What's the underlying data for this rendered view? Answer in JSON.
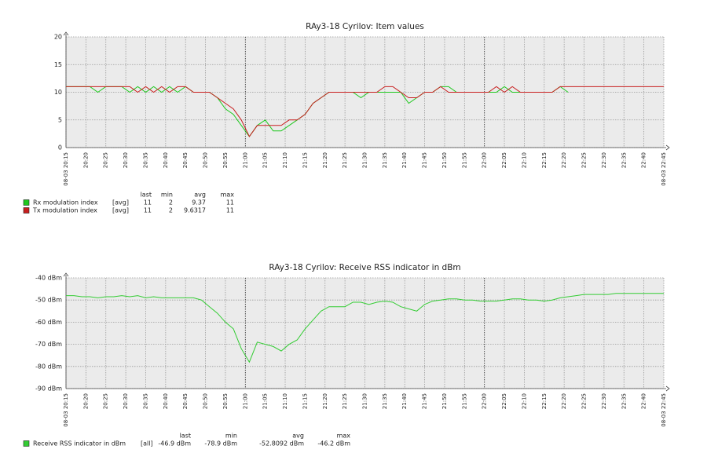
{
  "chart_data": [
    {
      "type": "line",
      "title": "RAy3-18 Cyrilov: Item values",
      "x": [
        "08-03 20:15",
        "08-03 20:17",
        "08-03 20:19",
        "08-03 20:21",
        "08-03 20:23",
        "08-03 20:25",
        "08-03 20:27",
        "08-03 20:29",
        "08-03 20:31",
        "08-03 20:33",
        "08-03 20:35",
        "08-03 20:37",
        "08-03 20:39",
        "08-03 20:41",
        "08-03 20:43",
        "08-03 20:45",
        "08-03 20:47",
        "08-03 20:49",
        "08-03 20:51",
        "08-03 20:53",
        "08-03 20:55",
        "08-03 20:57",
        "08-03 20:59",
        "08-03 21:01",
        "08-03 21:03",
        "08-03 21:05",
        "08-03 21:07",
        "08-03 21:09",
        "08-03 21:11",
        "08-03 21:13",
        "08-03 21:15",
        "08-03 21:17",
        "08-03 21:19",
        "08-03 21:21",
        "08-03 21:23",
        "08-03 21:25",
        "08-03 21:27",
        "08-03 21:29",
        "08-03 21:31",
        "08-03 21:33",
        "08-03 21:35",
        "08-03 21:37",
        "08-03 21:39",
        "08-03 21:41",
        "08-03 21:43",
        "08-03 21:45",
        "08-03 21:47",
        "08-03 21:49",
        "08-03 21:51",
        "08-03 21:53",
        "08-03 21:55",
        "08-03 21:57",
        "08-03 21:59",
        "08-03 22:01",
        "08-03 22:03",
        "08-03 22:05",
        "08-03 22:07",
        "08-03 22:09",
        "08-03 22:11",
        "08-03 22:13",
        "08-03 22:15",
        "08-03 22:17",
        "08-03 22:19",
        "08-03 22:21",
        "08-03 22:23",
        "08-03 22:25",
        "08-03 22:27",
        "08-03 22:29",
        "08-03 22:31",
        "08-03 22:33",
        "08-03 22:35",
        "08-03 22:37",
        "08-03 22:39",
        "08-03 22:41",
        "08-03 22:43",
        "08-03 22:45"
      ],
      "xlim": [
        "08-03 20:15",
        "08-03 22:45"
      ],
      "xticks": [
        "08-03 20:15",
        {
          "value": "08-03 20:20",
          "label": "20:20"
        },
        {
          "value": "08-03 20:25",
          "label": "20:25"
        },
        {
          "value": "08-03 20:30",
          "label": "20:30"
        },
        {
          "value": "08-03 20:35",
          "label": "20:35"
        },
        {
          "value": "08-03 20:40",
          "label": "20:40"
        },
        {
          "value": "08-03 20:45",
          "label": "20:45"
        },
        {
          "value": "08-03 20:50",
          "label": "20:50"
        },
        {
          "value": "08-03 20:55",
          "label": "20:55"
        },
        {
          "value": "08-03 21:00",
          "label": "21:00"
        },
        {
          "value": "08-03 21:05",
          "label": "21:05"
        },
        {
          "value": "08-03 21:10",
          "label": "21:10"
        },
        {
          "value": "08-03 21:15",
          "label": "21:15"
        },
        {
          "value": "08-03 21:20",
          "label": "21:20"
        },
        {
          "value": "08-03 21:25",
          "label": "21:25"
        },
        {
          "value": "08-03 21:30",
          "label": "21:30"
        },
        {
          "value": "08-03 21:35",
          "label": "21:35"
        },
        {
          "value": "08-03 21:40",
          "label": "21:40"
        },
        {
          "value": "08-03 21:45",
          "label": "21:45"
        },
        {
          "value": "08-03 21:50",
          "label": "21:50"
        },
        {
          "value": "08-03 21:55",
          "label": "21:55"
        },
        {
          "value": "08-03 22:00",
          "label": "22:00"
        },
        {
          "value": "08-03 22:05",
          "label": "22:05"
        },
        {
          "value": "08-03 22:10",
          "label": "22:10"
        },
        {
          "value": "08-03 22:15",
          "label": "22:15"
        },
        {
          "value": "08-03 22:20",
          "label": "22:20"
        },
        {
          "value": "08-03 22:25",
          "label": "22:25"
        },
        {
          "value": "08-03 22:30",
          "label": "22:30"
        },
        {
          "value": "08-03 22:35",
          "label": "22:35"
        },
        {
          "value": "08-03 22:40",
          "label": "22:40"
        },
        "08-03 22:45"
      ],
      "ylim": [
        0,
        20
      ],
      "yticks": [
        0,
        5,
        10,
        15,
        20
      ],
      "grid": true,
      "legend_headers": [
        "last",
        "min",
        "avg",
        "max"
      ],
      "series": [
        {
          "name": "Rx modulation index",
          "color": "#1ec81e",
          "stats": {
            "function": "[avg]",
            "last": 11,
            "min": 2,
            "avg": 9.37,
            "max": 11
          },
          "values": [
            11,
            11,
            11,
            11,
            10,
            11,
            11,
            11,
            10,
            11,
            10,
            11,
            10,
            11,
            10,
            11,
            10,
            10,
            10,
            9,
            7,
            6,
            4,
            2,
            4,
            5,
            3,
            3,
            4,
            5,
            6,
            8,
            9,
            10,
            10,
            10,
            10,
            9,
            10,
            10,
            10,
            10,
            10,
            8,
            9,
            10,
            10,
            11,
            11,
            10,
            10,
            10,
            10,
            10,
            10,
            11,
            10,
            10,
            10,
            10,
            10,
            10,
            11,
            10,
            null,
            null,
            null,
            null,
            null,
            null,
            null,
            null,
            null,
            null,
            null,
            null
          ]
        },
        {
          "name": "Tx modulation index",
          "color": "#c81e1e",
          "stats": {
            "function": "[avg]",
            "last": 11,
            "min": 2,
            "avg": 9.6317,
            "max": 11
          },
          "values": [
            11,
            11,
            11,
            11,
            11,
            11,
            11,
            11,
            11,
            10,
            11,
            10,
            11,
            10,
            11,
            11,
            10,
            10,
            10,
            9,
            8,
            7,
            5,
            2,
            4,
            4,
            4,
            4,
            5,
            5,
            6,
            8,
            9,
            10,
            10,
            10,
            10,
            10,
            10,
            10,
            11,
            11,
            10,
            9,
            9,
            10,
            10,
            11,
            10,
            10,
            10,
            10,
            10,
            10,
            11,
            10,
            11,
            10,
            10,
            10,
            10,
            10,
            11,
            11,
            11,
            11,
            11,
            11,
            11,
            11,
            11,
            11,
            11,
            11,
            11,
            11
          ]
        }
      ]
    },
    {
      "type": "line",
      "title": "RAy3-18 Cyrilov: Receive RSS indicator in dBm",
      "x": [
        "08-03 20:15",
        "08-03 20:17",
        "08-03 20:19",
        "08-03 20:21",
        "08-03 20:23",
        "08-03 20:25",
        "08-03 20:27",
        "08-03 20:29",
        "08-03 20:31",
        "08-03 20:33",
        "08-03 20:35",
        "08-03 20:37",
        "08-03 20:39",
        "08-03 20:41",
        "08-03 20:43",
        "08-03 20:45",
        "08-03 20:47",
        "08-03 20:49",
        "08-03 20:51",
        "08-03 20:53",
        "08-03 20:55",
        "08-03 20:57",
        "08-03 20:59",
        "08-03 21:01",
        "08-03 21:03",
        "08-03 21:05",
        "08-03 21:07",
        "08-03 21:09",
        "08-03 21:11",
        "08-03 21:13",
        "08-03 21:15",
        "08-03 21:17",
        "08-03 21:19",
        "08-03 21:21",
        "08-03 21:23",
        "08-03 21:25",
        "08-03 21:27",
        "08-03 21:29",
        "08-03 21:31",
        "08-03 21:33",
        "08-03 21:35",
        "08-03 21:37",
        "08-03 21:39",
        "08-03 21:41",
        "08-03 21:43",
        "08-03 21:45",
        "08-03 21:47",
        "08-03 21:49",
        "08-03 21:51",
        "08-03 21:53",
        "08-03 21:55",
        "08-03 21:57",
        "08-03 21:59",
        "08-03 22:01",
        "08-03 22:03",
        "08-03 22:05",
        "08-03 22:07",
        "08-03 22:09",
        "08-03 22:11",
        "08-03 22:13",
        "08-03 22:15",
        "08-03 22:17",
        "08-03 22:19",
        "08-03 22:21",
        "08-03 22:23",
        "08-03 22:25",
        "08-03 22:27",
        "08-03 22:29",
        "08-03 22:31",
        "08-03 22:33",
        "08-03 22:35",
        "08-03 22:37",
        "08-03 22:39",
        "08-03 22:41",
        "08-03 22:43",
        "08-03 22:45"
      ],
      "xlim": [
        "08-03 20:15",
        "08-03 22:45"
      ],
      "xticks": [
        "08-03 20:15",
        {
          "value": "08-03 20:20",
          "label": "20:20"
        },
        {
          "value": "08-03 20:25",
          "label": "20:25"
        },
        {
          "value": "08-03 20:30",
          "label": "20:30"
        },
        {
          "value": "08-03 20:35",
          "label": "20:35"
        },
        {
          "value": "08-03 20:40",
          "label": "20:40"
        },
        {
          "value": "08-03 20:45",
          "label": "20:45"
        },
        {
          "value": "08-03 20:50",
          "label": "20:50"
        },
        {
          "value": "08-03 20:55",
          "label": "20:55"
        },
        {
          "value": "08-03 21:00",
          "label": "21:00"
        },
        {
          "value": "08-03 21:05",
          "label": "21:05"
        },
        {
          "value": "08-03 21:10",
          "label": "21:10"
        },
        {
          "value": "08-03 21:15",
          "label": "21:15"
        },
        {
          "value": "08-03 21:20",
          "label": "21:20"
        },
        {
          "value": "08-03 21:25",
          "label": "21:25"
        },
        {
          "value": "08-03 21:30",
          "label": "21:30"
        },
        {
          "value": "08-03 21:35",
          "label": "21:35"
        },
        {
          "value": "08-03 21:40",
          "label": "21:40"
        },
        {
          "value": "08-03 21:45",
          "label": "21:45"
        },
        {
          "value": "08-03 21:50",
          "label": "21:50"
        },
        {
          "value": "08-03 21:55",
          "label": "21:55"
        },
        {
          "value": "08-03 22:00",
          "label": "22:00"
        },
        {
          "value": "08-03 22:05",
          "label": "22:05"
        },
        {
          "value": "08-03 22:10",
          "label": "22:10"
        },
        {
          "value": "08-03 22:15",
          "label": "22:15"
        },
        {
          "value": "08-03 22:20",
          "label": "22:20"
        },
        {
          "value": "08-03 22:25",
          "label": "22:25"
        },
        {
          "value": "08-03 22:30",
          "label": "22:30"
        },
        {
          "value": "08-03 22:35",
          "label": "22:35"
        },
        {
          "value": "08-03 22:40",
          "label": "22:40"
        },
        "08-03 22:45"
      ],
      "ylim": [
        -90,
        -40
      ],
      "yticks": [
        {
          "value": -90,
          "label": "-90 dBm"
        },
        {
          "value": -80,
          "label": "-80 dBm"
        },
        {
          "value": -70,
          "label": "-70 dBm"
        },
        {
          "value": -60,
          "label": "-60 dBm"
        },
        {
          "value": -50,
          "label": "-50 dBm"
        },
        {
          "value": -40,
          "label": "-40 dBm"
        }
      ],
      "grid": true,
      "legend_headers": [
        "last",
        "min",
        "avg",
        "max"
      ],
      "series": [
        {
          "name": "Receive RSS indicator in dBm",
          "color": "#33cc33",
          "stats": {
            "function": "[all]",
            "last": "-46.9 dBm",
            "min": "-78.9 dBm",
            "avg": "-52.8092 dBm",
            "max": "-46.2 dBm"
          },
          "values": [
            -48,
            -48,
            -48.5,
            -48.5,
            -49,
            -48.5,
            -48.5,
            -48,
            -48.5,
            -48,
            -49,
            -48.5,
            -49,
            -49,
            -49,
            -49,
            -49,
            -50,
            -53,
            -56,
            -60,
            -63,
            -72,
            -78,
            -69,
            -70,
            -71,
            -73,
            -70,
            -68,
            -63,
            -59,
            -55,
            -53,
            -53,
            -53,
            -51,
            -51,
            -52,
            -51,
            -50.5,
            -51,
            -53,
            -54,
            -55,
            -52,
            -50.5,
            -50,
            -49.5,
            -49.5,
            -50,
            -50,
            -50.5,
            -50.5,
            -50.5,
            -50,
            -49.5,
            -49.5,
            -50,
            -50,
            -50.5,
            -50,
            -49,
            -48.5,
            -48,
            -47.5,
            -47.5,
            -47.5,
            -47.5,
            -47,
            -47,
            -47,
            -47,
            -47,
            -47,
            -47
          ]
        }
      ]
    }
  ]
}
